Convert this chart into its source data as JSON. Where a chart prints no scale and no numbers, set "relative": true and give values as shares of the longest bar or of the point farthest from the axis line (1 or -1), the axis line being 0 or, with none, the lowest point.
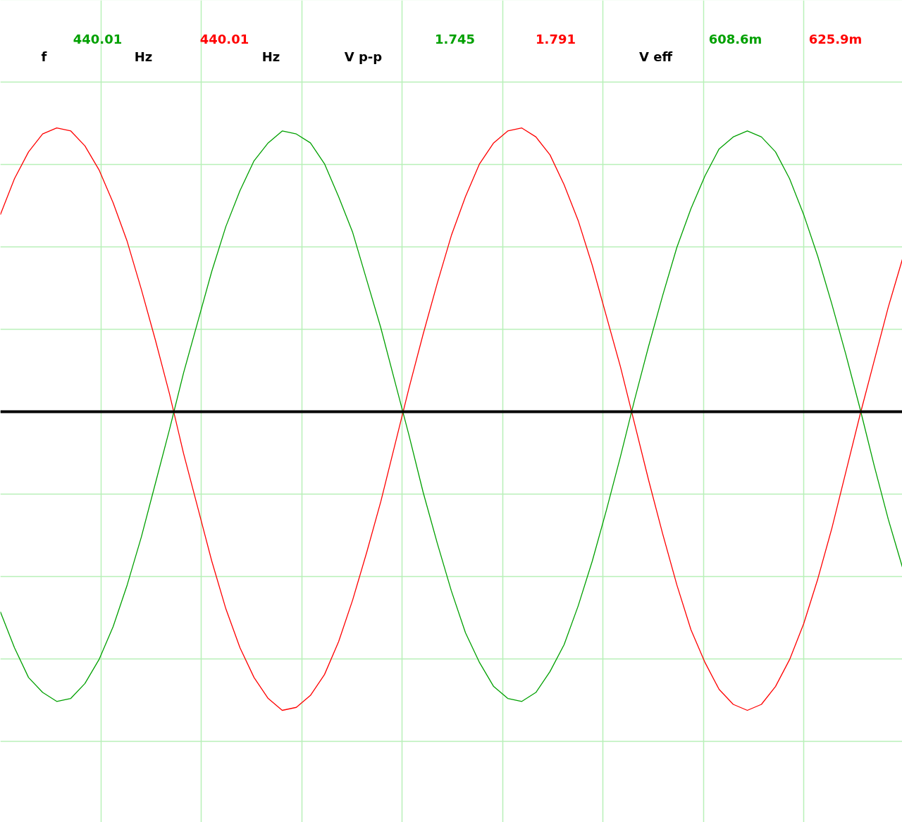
{
  "chart_data": {
    "type": "line",
    "relative": true,
    "grid": true,
    "marker": "none",
    "line_style": "solid",
    "categories": [
      null,
      null,
      null,
      null,
      null,
      null,
      null,
      null,
      null,
      null,
      null,
      null,
      null,
      null,
      null,
      null,
      null,
      null,
      null,
      null,
      null,
      null,
      null,
      null,
      null,
      null,
      null,
      null,
      null,
      null,
      null,
      null,
      null,
      null,
      null,
      null,
      null,
      null,
      null,
      null,
      null,
      null,
      null,
      null,
      null,
      null,
      null,
      null,
      null,
      null,
      null,
      null,
      null,
      null,
      null,
      null,
      null,
      null,
      null,
      null,
      null,
      null,
      null,
      null,
      null
    ],
    "series": [
      {
        "color": "#ff0000",
        "values": [
          0.66,
          0.78,
          0.87,
          0.93,
          0.95,
          0.94,
          0.89,
          0.81,
          0.7,
          0.57,
          0.41,
          0.24,
          0.06,
          -0.14,
          -0.32,
          -0.5,
          -0.66,
          -0.79,
          -0.89,
          -0.96,
          -1.0,
          -0.99,
          -0.95,
          -0.88,
          -0.77,
          -0.63,
          -0.47,
          -0.3,
          -0.11,
          0.08,
          0.26,
          0.43,
          0.59,
          0.72,
          0.83,
          0.9,
          0.94,
          0.95,
          0.92,
          0.86,
          0.76,
          0.64,
          0.49,
          0.32,
          0.15,
          -0.04,
          -0.23,
          -0.41,
          -0.58,
          -0.73,
          -0.84,
          -0.93,
          -0.98,
          -1.0,
          -0.98,
          -0.92,
          -0.83,
          -0.71,
          -0.56,
          -0.39,
          -0.2,
          -0.01,
          0.17,
          0.35,
          0.51
        ]
      },
      {
        "color": "#00a000",
        "values": [
          -0.67,
          -0.79,
          -0.89,
          -0.94,
          -0.97,
          -0.96,
          -0.91,
          -0.83,
          -0.72,
          -0.58,
          -0.42,
          -0.24,
          -0.06,
          0.13,
          0.3,
          0.47,
          0.62,
          0.74,
          0.84,
          0.9,
          0.94,
          0.93,
          0.9,
          0.83,
          0.72,
          0.6,
          0.44,
          0.28,
          0.1,
          -0.08,
          -0.27,
          -0.44,
          -0.6,
          -0.74,
          -0.84,
          -0.92,
          -0.96,
          -0.97,
          -0.94,
          -0.87,
          -0.78,
          -0.65,
          -0.5,
          -0.33,
          -0.15,
          0.04,
          0.22,
          0.39,
          0.55,
          0.68,
          0.79,
          0.88,
          0.92,
          0.94,
          0.92,
          0.87,
          0.78,
          0.66,
          0.52,
          0.36,
          0.19,
          0.01,
          -0.18,
          -0.36,
          -0.52
        ]
      }
    ],
    "annotations": [
      "f",
      "440.01",
      "Hz",
      "440.01",
      "Hz",
      "V p-p",
      "1.745",
      "1.791",
      "V eff",
      "608.6m",
      "625.9m"
    ]
  }
}
